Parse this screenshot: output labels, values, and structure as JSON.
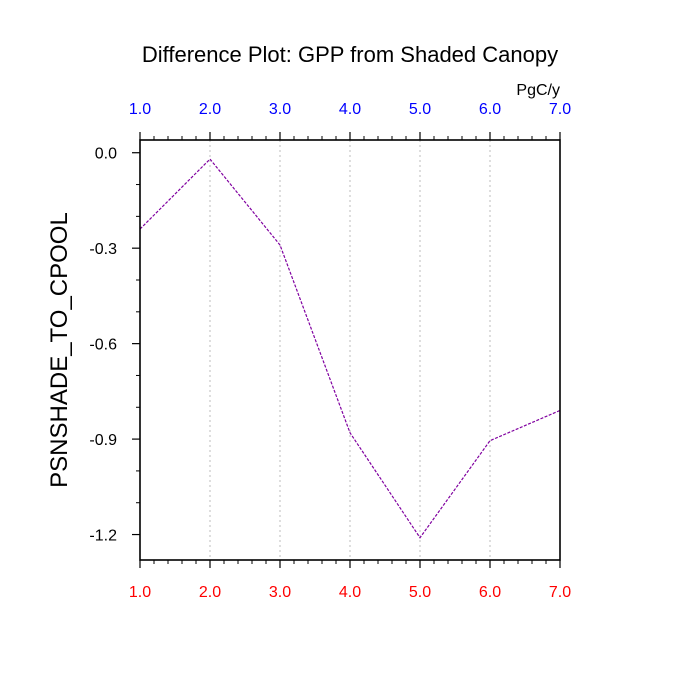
{
  "chart_data": {
    "type": "line",
    "title": "Difference Plot: GPP from Shaded Canopy",
    "units": "PgC/y",
    "ylabel": "PSNSHADE_TO_CPOOL",
    "xlabel": "",
    "x": [
      1,
      2,
      3,
      4,
      5,
      6,
      7
    ],
    "xlim": [
      1,
      7
    ],
    "ylim": [
      -1.28,
      0.04
    ],
    "x_ticks": [
      1,
      2,
      3,
      4,
      5,
      6,
      7
    ],
    "x_tick_labels": [
      "1.0",
      "2.0",
      "3.0",
      "4.0",
      "5.0",
      "6.0",
      "7.0"
    ],
    "y_ticks": [
      0.0,
      -0.3,
      -0.6,
      -0.9,
      -1.2
    ],
    "y_tick_labels": [
      "0.0",
      "-0.3",
      "-0.6",
      "-0.9",
      "-1.2"
    ],
    "series": [
      {
        "values": [
          -0.24,
          -0.02,
          -0.29,
          -0.88,
          -1.21,
          -0.905,
          -0.81
        ],
        "color": "#8000a0",
        "dash": "dashed"
      }
    ],
    "grid": "vertical-dotted",
    "colors": {
      "top_axis_labels": "#0000ff",
      "bottom_axis_labels": "#ff0000",
      "frame": "#000000"
    }
  }
}
